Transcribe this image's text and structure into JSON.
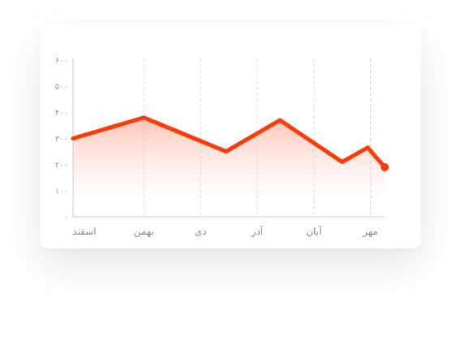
{
  "chart_data": {
    "type": "area",
    "categories": [
      "اسفند",
      "بهمن",
      "دی",
      "آذر",
      "آبان",
      "مهر"
    ],
    "y_tick_labels": [
      "۰",
      "۱۰۰",
      "۲۰۰",
      "۳۰۰",
      "۴۰۰",
      "۵۰۰",
      "۶۰۰"
    ],
    "y_ticks": [
      0,
      100,
      200,
      300,
      400,
      500,
      600
    ],
    "ylim": [
      0,
      600
    ],
    "x_domain": [
      0,
      5.5
    ],
    "x": [
      0,
      1.25,
      2.7,
      3.65,
      4.75,
      5.2,
      5.5
    ],
    "values": [
      300,
      380,
      250,
      370,
      210,
      265,
      190
    ],
    "grid": "vertical-dashed",
    "legend": "none",
    "colors": {
      "line": "#ff3a05",
      "fill_top": "#ff7a55",
      "grid": "#d9d9d9",
      "axis": "#cccccc"
    }
  }
}
